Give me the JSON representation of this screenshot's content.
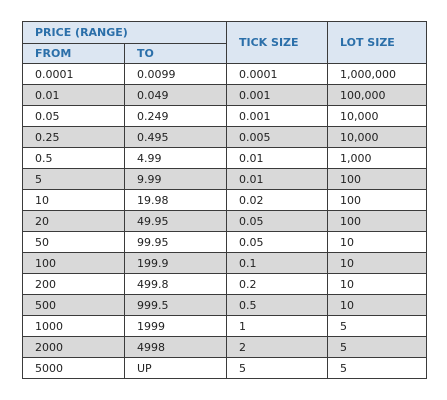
{
  "table": {
    "header": {
      "price_range": "PRICE (RANGE)",
      "from": "FROM",
      "to": "TO",
      "tick_size": "TICK SIZE",
      "lot_size": "LOT SIZE"
    },
    "rows": [
      {
        "from": "0.0001",
        "to": "0.0099",
        "tick": "0.0001",
        "lot": "1,000,000"
      },
      {
        "from": "0.01",
        "to": "0.049",
        "tick": "0.001",
        "lot": "100,000"
      },
      {
        "from": "0.05",
        "to": "0.249",
        "tick": "0.001",
        "lot": "10,000"
      },
      {
        "from": "0.25",
        "to": "0.495",
        "tick": "0.005",
        "lot": "10,000"
      },
      {
        "from": "0.5",
        "to": "4.99",
        "tick": "0.01",
        "lot": "1,000"
      },
      {
        "from": "5",
        "to": "9.99",
        "tick": "0.01",
        "lot": "100"
      },
      {
        "from": "10",
        "to": "19.98",
        "tick": "0.02",
        "lot": "100"
      },
      {
        "from": "20",
        "to": "49.95",
        "tick": "0.05",
        "lot": "100"
      },
      {
        "from": "50",
        "to": "99.95",
        "tick": "0.05",
        "lot": "10"
      },
      {
        "from": "100",
        "to": "199.9",
        "tick": "0.1",
        "lot": "10"
      },
      {
        "from": "200",
        "to": "499.8",
        "tick": "0.2",
        "lot": "10"
      },
      {
        "from": "500",
        "to": "999.5",
        "tick": "0.5",
        "lot": "10"
      },
      {
        "from": "1000",
        "to": "1999",
        "tick": "1",
        "lot": "5"
      },
      {
        "from": "2000",
        "to": "4998",
        "tick": "2",
        "lot": "5"
      },
      {
        "from": "5000",
        "to": "UP",
        "tick": "5",
        "lot": "5"
      }
    ]
  },
  "colors": {
    "header_bg": "#dce6f2",
    "header_text": "#2b6fa9",
    "shaded_row": "#d9d9d9",
    "border": "#3b3b3b"
  }
}
